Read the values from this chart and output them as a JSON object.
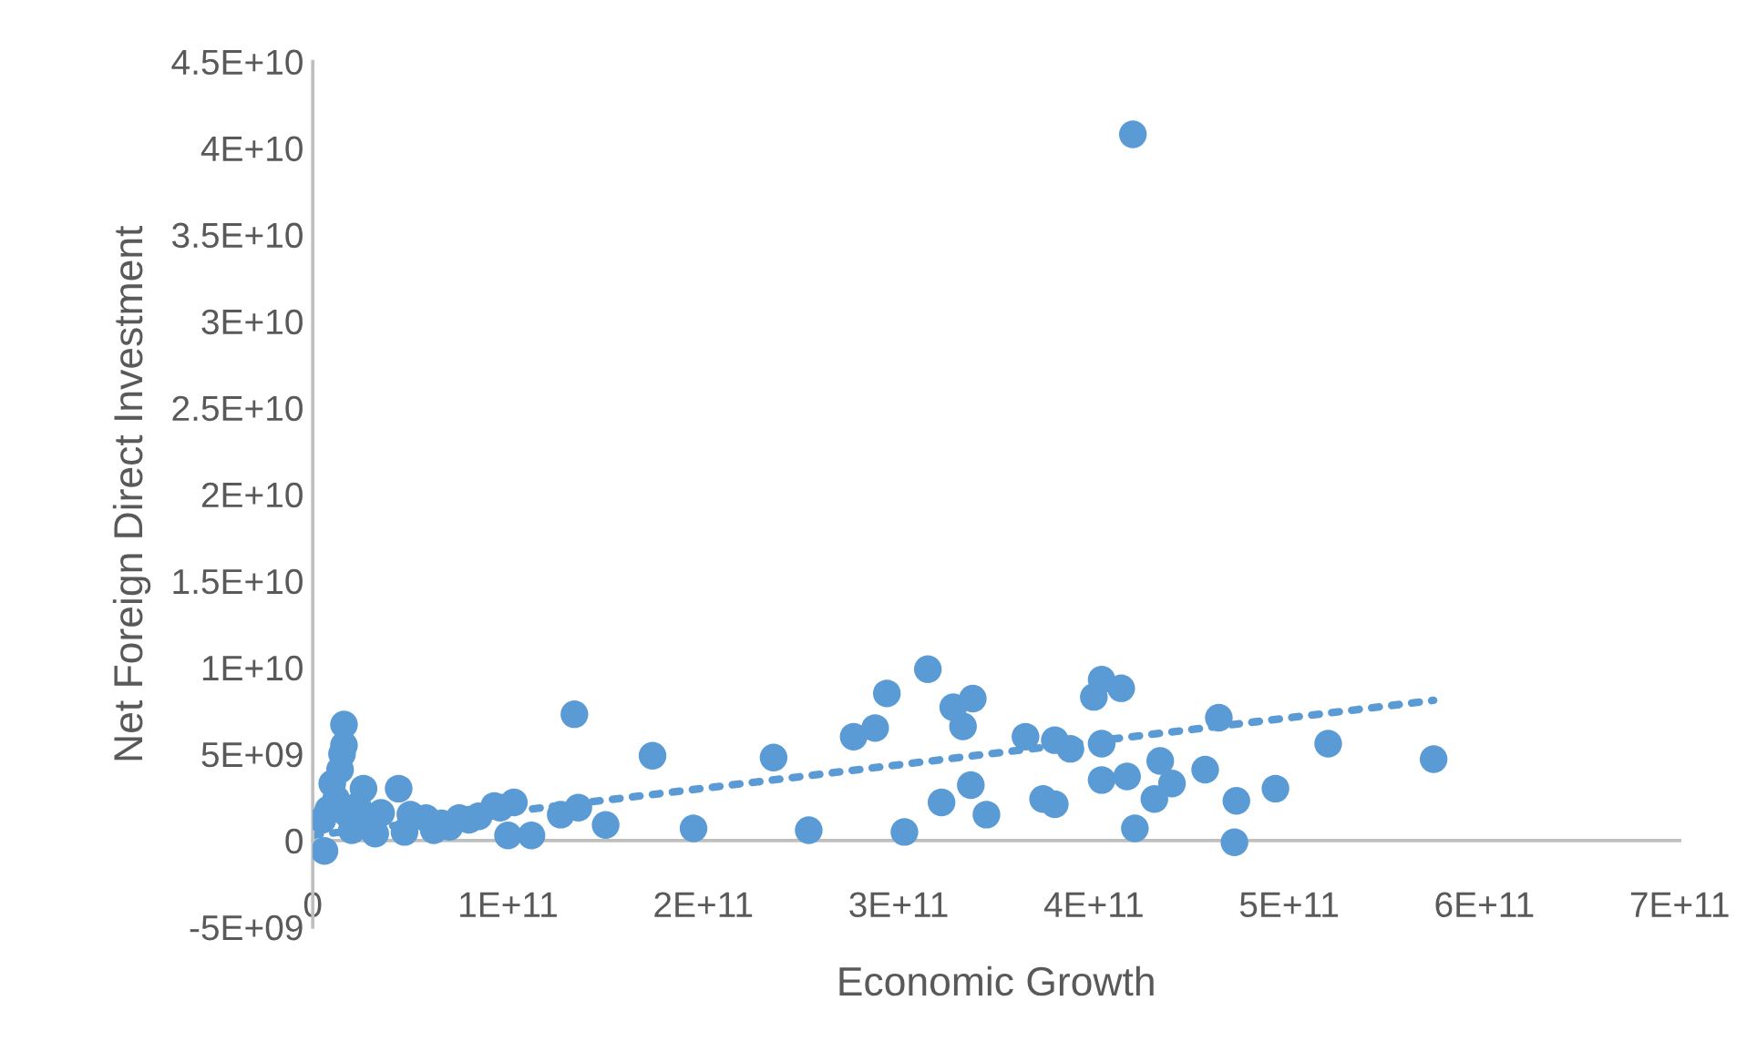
{
  "chart_data": {
    "type": "scatter",
    "xlabel": "Economic Growth",
    "ylabel": "Net Foreign Direct Investment",
    "grid": false,
    "legend": false,
    "xlim": [
      0,
      700000000000
    ],
    "ylim": [
      -5000000000,
      45000000000
    ],
    "xticks": [
      0,
      {
        "value": 100000000000,
        "label": "1E+11"
      },
      {
        "value": 200000000000,
        "label": "2E+11"
      },
      {
        "value": 300000000000,
        "label": "3E+11"
      },
      {
        "value": 400000000000,
        "label": "4E+11"
      },
      {
        "value": 500000000000,
        "label": "5E+11"
      },
      {
        "value": 600000000000,
        "label": "6E+11"
      },
      {
        "value": 700000000000,
        "label": "7E+11"
      }
    ],
    "yticks": [
      {
        "value": -5000000000,
        "label": "-5E+09"
      },
      0,
      {
        "value": 5000000000,
        "label": "5E+09"
      },
      {
        "value": 10000000000,
        "label": "1E+10"
      },
      {
        "value": 15000000000,
        "label": "1.5E+10"
      },
      {
        "value": 20000000000,
        "label": "2E+10"
      },
      {
        "value": 25000000000,
        "label": "2.5E+10"
      },
      {
        "value": 30000000000,
        "label": "3E+10"
      },
      {
        "value": 35000000000,
        "label": "3.5E+10"
      },
      {
        "value": 40000000000,
        "label": "4E+10"
      },
      {
        "value": 45000000000,
        "label": "4.5E+10"
      }
    ],
    "series": [
      {
        "color": "#5b9bd5",
        "marker": "circle",
        "x": [
          5000000000.0,
          6000000000.0,
          8000000000.0,
          10000000000.0,
          12000000000.0,
          14000000000.0,
          15000000000.0,
          16000000000.0,
          16000000000.0,
          18000000000.0,
          20000000000.0,
          23000000000.0,
          26000000000.0,
          28000000000.0,
          32000000000.0,
          35000000000.0,
          44000000000.0,
          47000000000.0,
          50000000000.0,
          58000000000.0,
          62000000000.0,
          66000000000.0,
          70000000000.0,
          75000000000.0,
          80000000000.0,
          85000000000.0,
          93000000000.0,
          96000000000.0,
          100000000000.0,
          103000000000.0,
          112000000000.0,
          127000000000.0,
          134000000000.0,
          136000000000.0,
          150000000000.0,
          174000000000.0,
          195000000000.0,
          236000000000.0,
          254000000000.0,
          277000000000.0,
          288000000000.0,
          294000000000.0,
          303000000000.0,
          315000000000.0,
          322000000000.0,
          328000000000.0,
          333000000000.0,
          338000000000.0,
          337000000000.0,
          345000000000.0,
          365000000000.0,
          374000000000.0,
          380000000000.0,
          380000000000.0,
          388000000000.0,
          400000000000.0,
          404000000000.0,
          404000000000.0,
          404000000000.0,
          414000000000.0,
          417000000000.0,
          420000000000.0,
          421000000000.0,
          431000000000.0,
          434000000000.0,
          440000000000.0,
          457000000000.0,
          464000000000.0,
          473000000000.0,
          472000000000.0,
          493000000000.0,
          520000000000.0,
          574000000000.0
        ],
        "values": [
          1200000000.0,
          -600000000.0,
          1800000000.0,
          3300000000.0,
          2400000000.0,
          4100000000.0,
          5000000000.0,
          5500000000.0,
          6700000000.0,
          1500000000.0,
          600000000.0,
          2000000000.0,
          3000000000.0,
          1000000000.0,
          400000000.0,
          1600000000.0,
          3000000000.0,
          500000000.0,
          1500000000.0,
          1300000000.0,
          600000000.0,
          1000000000.0,
          800000000.0,
          1300000000.0,
          1200000000.0,
          1400000000.0,
          2000000000.0,
          1900000000.0,
          300000000.0,
          2200000000.0,
          300000000.0,
          1500000000.0,
          7300000000.0,
          1900000000.0,
          900000000.0,
          4900000000.0,
          700000000.0,
          4800000000.0,
          600000000.0,
          6000000000.0,
          6500000000.0,
          8500000000.0,
          500000000.0,
          9900000000.0,
          2200000000.0,
          7700000000.0,
          6600000000.0,
          8200000000.0,
          3200000000.0,
          1500000000.0,
          6000000000.0,
          2400000000.0,
          2100000000.0,
          5800000000.0,
          5300000000.0,
          8300000000.0,
          9300000000.0,
          5600000000.0,
          3500000000.0,
          8800000000.0,
          3700000000.0,
          40800000000.0,
          700000000.0,
          2400000000.0,
          4600000000.0,
          3300000000.0,
          4100000000.0,
          7100000000.0,
          2300000000.0,
          -100000000.0,
          3000000000.0,
          5600000000.0,
          4700000000.0
        ]
      },
      {
        "type": "line",
        "color": "#5b9bd5",
        "line_style": "dotted",
        "x": [
          0,
          574000000000.0
        ],
        "values": [
          300000000.0,
          8100000000.0
        ]
      }
    ]
  }
}
